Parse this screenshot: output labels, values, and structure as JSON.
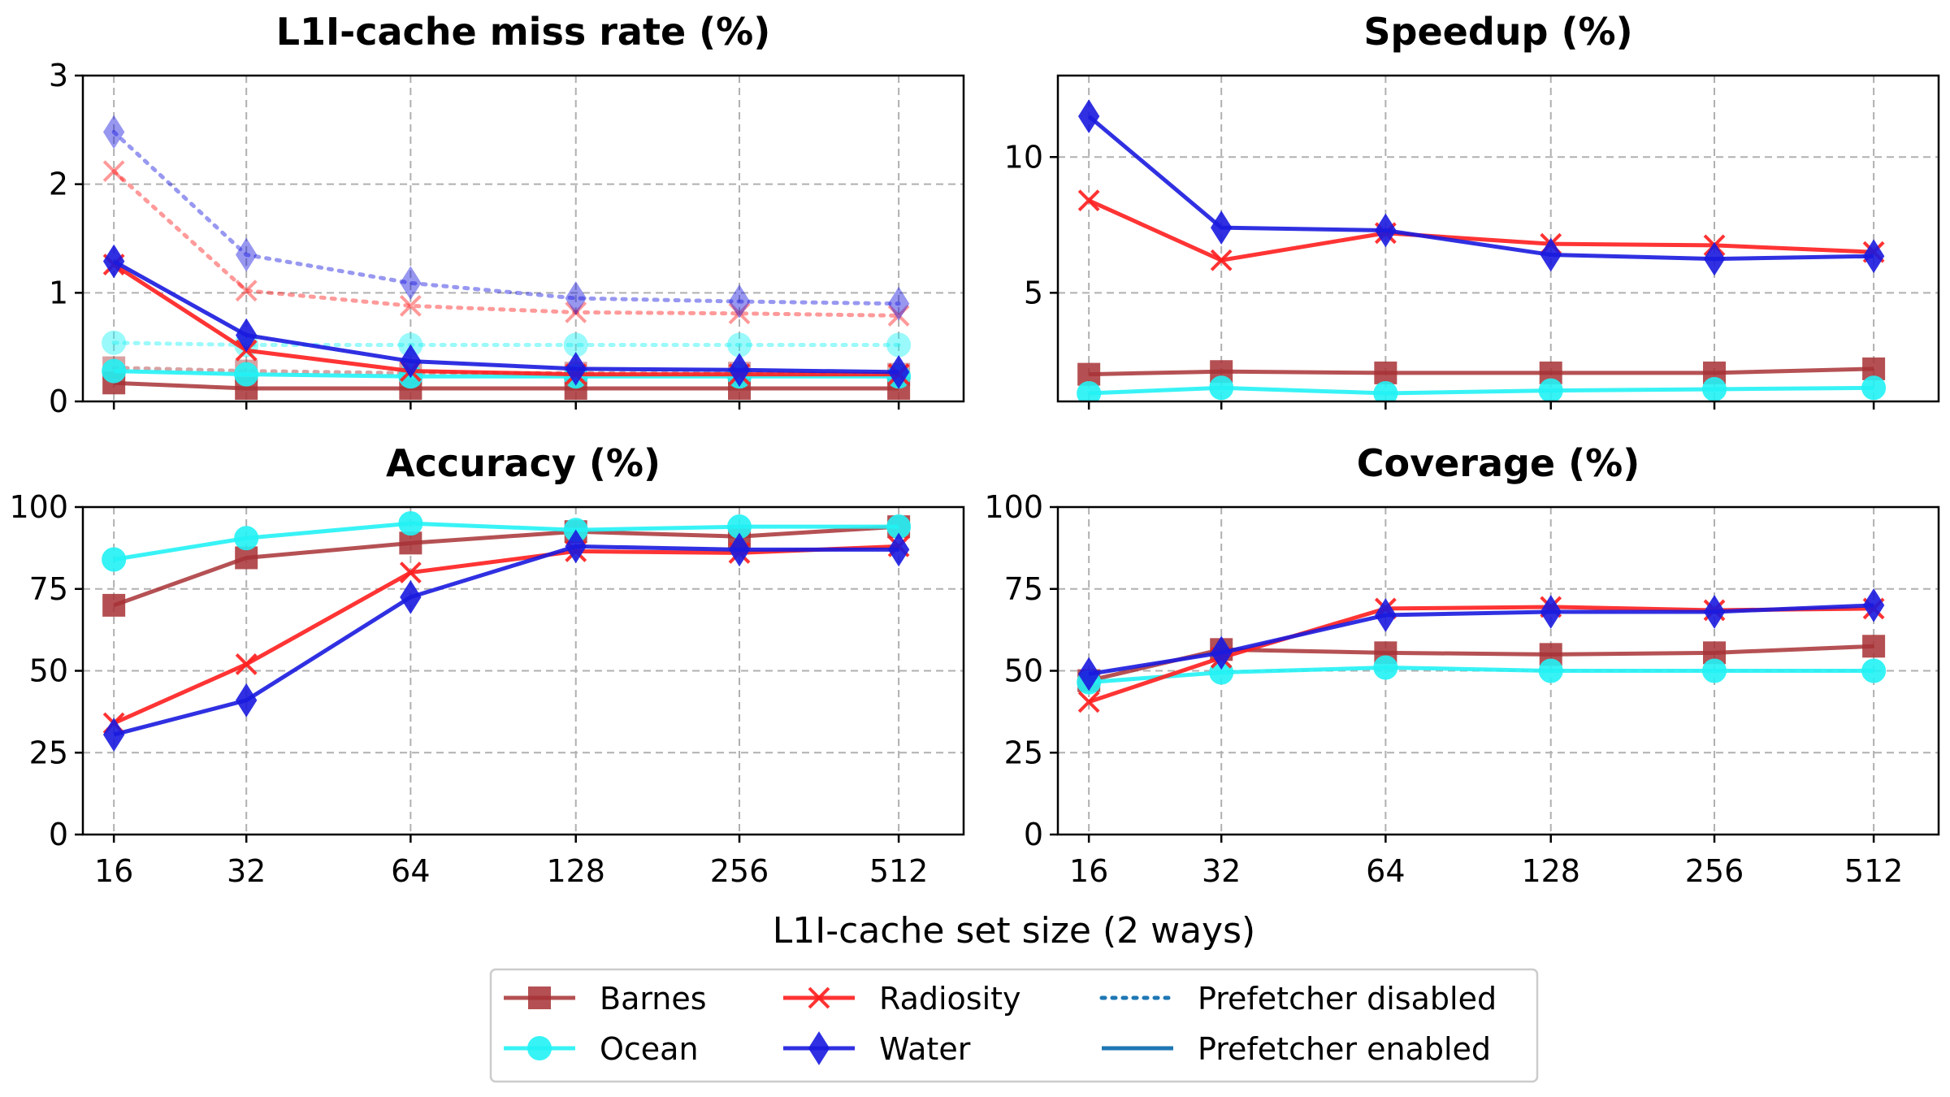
{
  "chart_data": [
    {
      "type": "line",
      "title": "L1I-cache miss rate (%)",
      "x": [
        "16",
        "32",
        "64",
        "128",
        "256",
        "512"
      ],
      "ylim": [
        0,
        3
      ],
      "yticks": [
        "0",
        "1",
        "2",
        "3"
      ],
      "grid": true,
      "series": [
        {
          "name": "Barnes",
          "mode": "Prefetcher enabled",
          "values": [
            0.17,
            0.12,
            0.12,
            0.12,
            0.12,
            0.12
          ]
        },
        {
          "name": "Barnes",
          "mode": "Prefetcher disabled",
          "values": [
            0.31,
            0.28,
            0.26,
            0.26,
            0.26,
            0.25
          ]
        },
        {
          "name": "Ocean",
          "mode": "Prefetcher enabled",
          "values": [
            0.28,
            0.25,
            0.23,
            0.23,
            0.23,
            0.23
          ]
        },
        {
          "name": "Ocean",
          "mode": "Prefetcher disabled",
          "values": [
            0.54,
            0.52,
            0.52,
            0.52,
            0.52,
            0.52
          ]
        },
        {
          "name": "Radiosity",
          "mode": "Prefetcher enabled",
          "values": [
            1.26,
            0.47,
            0.28,
            0.25,
            0.25,
            0.25
          ]
        },
        {
          "name": "Radiosity",
          "mode": "Prefetcher disabled",
          "values": [
            2.12,
            1.02,
            0.88,
            0.82,
            0.81,
            0.79
          ]
        },
        {
          "name": "Water",
          "mode": "Prefetcher enabled",
          "values": [
            1.29,
            0.61,
            0.37,
            0.3,
            0.29,
            0.27
          ]
        },
        {
          "name": "Water",
          "mode": "Prefetcher disabled",
          "values": [
            2.48,
            1.35,
            1.09,
            0.95,
            0.92,
            0.9
          ]
        }
      ]
    },
    {
      "type": "line",
      "title": "Speedup (%)",
      "x": [
        "16",
        "32",
        "64",
        "128",
        "256",
        "512"
      ],
      "ylim": [
        1,
        13
      ],
      "yticks": [
        "5",
        "10"
      ],
      "grid": true,
      "series": [
        {
          "name": "Barnes",
          "values": [
            2.0,
            2.1,
            2.05,
            2.05,
            2.05,
            2.2
          ]
        },
        {
          "name": "Ocean",
          "values": [
            1.3,
            1.5,
            1.3,
            1.4,
            1.45,
            1.5
          ]
        },
        {
          "name": "Radiosity",
          "values": [
            8.4,
            6.2,
            7.2,
            6.8,
            6.75,
            6.5
          ]
        },
        {
          "name": "Water",
          "values": [
            11.5,
            7.4,
            7.3,
            6.4,
            6.25,
            6.35
          ]
        }
      ]
    },
    {
      "type": "line",
      "title": "Accuracy (%)",
      "x": [
        "16",
        "32",
        "64",
        "128",
        "256",
        "512"
      ],
      "ylim": [
        0,
        100
      ],
      "yticks": [
        "0",
        "25",
        "50",
        "75",
        "100"
      ],
      "grid": true,
      "series": [
        {
          "name": "Barnes",
          "values": [
            70,
            84.5,
            89,
            92.5,
            91,
            94
          ]
        },
        {
          "name": "Ocean",
          "values": [
            84,
            90.5,
            95,
            93,
            94,
            94
          ]
        },
        {
          "name": "Radiosity",
          "values": [
            34,
            52,
            80,
            86.5,
            86,
            88
          ]
        },
        {
          "name": "Water",
          "values": [
            30.5,
            41,
            72.5,
            88,
            87,
            87
          ]
        }
      ]
    },
    {
      "type": "line",
      "title": "Coverage (%)",
      "x": [
        "16",
        "32",
        "64",
        "128",
        "256",
        "512"
      ],
      "ylim": [
        0,
        100
      ],
      "yticks": [
        "0",
        "25",
        "50",
        "75",
        "100"
      ],
      "grid": true,
      "series": [
        {
          "name": "Barnes",
          "values": [
            47,
            56.5,
            55.5,
            55,
            55.5,
            57.5
          ]
        },
        {
          "name": "Ocean",
          "values": [
            46.5,
            49.5,
            51,
            50,
            50,
            50
          ]
        },
        {
          "name": "Radiosity",
          "values": [
            40.5,
            54,
            69,
            69.5,
            68.5,
            69
          ]
        },
        {
          "name": "Water",
          "values": [
            49,
            55.5,
            67,
            68,
            68,
            70
          ]
        }
      ]
    }
  ],
  "xlabel": "L1I-cache set size (2 ways)",
  "colors": {
    "Barnes": "#a83236",
    "Ocean": "#22f2f5",
    "Radiosity": "#ff1e1e",
    "Water": "#1a1adf",
    "legend_line": "#1f77b4"
  },
  "markers": {
    "Barnes": "square",
    "Ocean": "circle",
    "Radiosity": "x",
    "Water": "diamond"
  },
  "legend": {
    "placement": "bottom-center",
    "entries": [
      "Barnes",
      "Ocean",
      "Radiosity",
      "Water",
      "Prefetcher disabled",
      "Prefetcher enabled"
    ]
  }
}
